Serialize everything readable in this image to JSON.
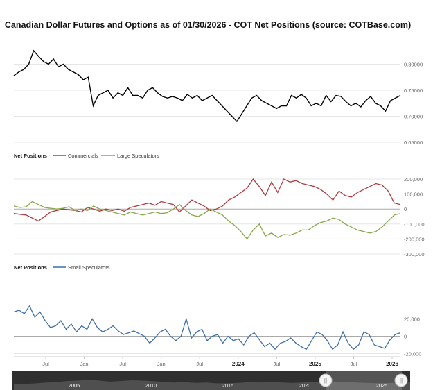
{
  "chart_data": {
    "type": "line",
    "title": "Canadian Dollar Futures and Options as of 01/30/2026 - COT Net Positions (source: COTBase.com)",
    "colors": {
      "price": "#000000",
      "commercials": "#b03a3f",
      "large_specs": "#86a84a",
      "small_specs": "#3f6fa8",
      "grid": "#e6e6e6",
      "zero": "#aaaaaa",
      "navigator_bg": "#2f2f2f",
      "navigator_area": "#555555"
    },
    "x_ticks": [
      {
        "label": "Jul",
        "bold": false
      },
      {
        "label": "Jan",
        "bold": false
      },
      {
        "label": "Jul",
        "bold": false
      },
      {
        "label": "Jan",
        "bold": false
      },
      {
        "label": "Jul",
        "bold": false
      },
      {
        "label": "2024",
        "bold": true
      },
      {
        "label": "Jul",
        "bold": false
      },
      {
        "label": "2025",
        "bold": true
      },
      {
        "label": "Jul",
        "bold": false
      },
      {
        "label": "2026",
        "bold": true
      }
    ],
    "panels": [
      {
        "name": "price",
        "y_ticks": [
          "0.80000",
          "0.75000",
          "0.70000",
          "0.65000"
        ],
        "ylim": [
          0.65,
          0.83
        ],
        "series": [
          {
            "key": "price",
            "values": [
              0.778,
              0.785,
              0.79,
              0.8,
              0.826,
              0.815,
              0.805,
              0.8,
              0.81,
              0.795,
              0.8,
              0.79,
              0.785,
              0.78,
              0.77,
              0.775,
              0.72,
              0.74,
              0.745,
              0.75,
              0.735,
              0.745,
              0.74,
              0.755,
              0.74,
              0.74,
              0.735,
              0.75,
              0.755,
              0.745,
              0.738,
              0.735,
              0.738,
              0.735,
              0.73,
              0.742,
              0.735,
              0.74,
              0.73,
              0.735,
              0.74,
              0.73,
              0.72,
              0.71,
              0.7,
              0.69,
              0.705,
              0.72,
              0.735,
              0.74,
              0.73,
              0.725,
              0.72,
              0.715,
              0.72,
              0.72,
              0.74,
              0.735,
              0.742,
              0.735,
              0.72,
              0.725,
              0.72,
              0.74,
              0.728,
              0.74,
              0.738,
              0.728,
              0.72,
              0.725,
              0.718,
              0.73,
              0.738,
              0.725,
              0.72,
              0.71,
              0.73,
              0.735,
              0.74
            ]
          }
        ]
      },
      {
        "name": "cot-net-1",
        "legend_head": "Net Positions",
        "legend": [
          "Commercials",
          "Large Speculators"
        ],
        "y_ticks": [
          "200,000",
          "100,000",
          "0",
          "-100,000",
          "-200,000",
          "-300,000"
        ],
        "ylim": [
          -300000,
          200000
        ],
        "series": [
          {
            "key": "commercials",
            "name": "Commercials",
            "values": [
              -30000,
              -35000,
              -40000,
              -60000,
              -80000,
              -50000,
              -20000,
              -10000,
              0,
              -5000,
              -10000,
              -20000,
              10000,
              0,
              -15000,
              0,
              -10000,
              0,
              -15000,
              10000,
              20000,
              30000,
              40000,
              25000,
              50000,
              40000,
              30000,
              -20000,
              20000,
              60000,
              40000,
              20000,
              -10000,
              0,
              20000,
              60000,
              80000,
              110000,
              140000,
              200000,
              150000,
              90000,
              180000,
              110000,
              200000,
              180000,
              190000,
              170000,
              160000,
              150000,
              130000,
              100000,
              60000,
              120000,
              90000,
              80000,
              110000,
              130000,
              150000,
              170000,
              160000,
              120000,
              40000,
              30000
            ]
          },
          {
            "key": "large_specs",
            "name": "Large Speculators",
            "values": [
              20000,
              10000,
              15000,
              50000,
              30000,
              10000,
              5000,
              0,
              5000,
              15000,
              -10000,
              0,
              -10000,
              20000,
              0,
              -10000,
              -20000,
              -30000,
              -40000,
              -20000,
              -30000,
              -40000,
              -30000,
              -20000,
              -30000,
              -25000,
              0,
              30000,
              -10000,
              -40000,
              -50000,
              -30000,
              0,
              -20000,
              -40000,
              -80000,
              -110000,
              -150000,
              -200000,
              -140000,
              -100000,
              -180000,
              -160000,
              -190000,
              -170000,
              -175000,
              -160000,
              -140000,
              -140000,
              -110000,
              -90000,
              -80000,
              -60000,
              -70000,
              -100000,
              -120000,
              -140000,
              -150000,
              -160000,
              -150000,
              -120000,
              -80000,
              -40000,
              -30000
            ]
          }
        ]
      },
      {
        "name": "cot-net-2",
        "legend_head": "Net Positions",
        "legend": [
          "Small Speculators"
        ],
        "y_ticks": [
          "20,000",
          "0",
          "-20,000"
        ],
        "ylim": [
          -22000,
          38000
        ],
        "series": [
          {
            "key": "small_specs",
            "name": "Small Speculators",
            "values": [
              28000,
              30000,
              26000,
              35000,
              22000,
              28000,
              18000,
              10000,
              12000,
              18000,
              8000,
              14000,
              5000,
              12000,
              8000,
              20000,
              10000,
              5000,
              8000,
              12000,
              6000,
              2000,
              4000,
              6000,
              3000,
              0,
              -8000,
              -2000,
              5000,
              8000,
              0,
              -5000,
              0,
              20000,
              -2000,
              5000,
              8000,
              -5000,
              0,
              2000,
              -8000,
              0,
              -5000,
              -3000,
              -10000,
              0,
              4000,
              -4000,
              -12000,
              -8000,
              -15000,
              -8000,
              -6000,
              -2000,
              -8000,
              -12000,
              -15000,
              -5000,
              5000,
              2000,
              -5000,
              -15000,
              -10000,
              5000,
              -8000,
              -15000,
              -10000,
              5000,
              2000,
              -10000,
              -12000,
              -14000,
              -4000,
              2000,
              4000
            ]
          }
        ]
      }
    ],
    "navigator": {
      "labels": [
        "2005",
        "2010",
        "2015",
        "2020",
        "2025"
      ],
      "handle_left_symbol": "||",
      "handle_right_symbol": "||",
      "area": [
        0.3,
        0.32,
        0.35,
        0.4,
        0.42,
        0.48,
        0.5,
        0.55,
        0.5,
        0.45,
        0.48,
        0.52,
        0.5,
        0.47,
        0.44,
        0.4,
        0.42,
        0.38,
        0.4,
        0.35,
        0.36,
        0.38,
        0.42,
        0.45,
        0.43,
        0.4,
        0.38,
        0.4,
        0.44,
        0.46,
        0.45,
        0.42,
        0.4,
        0.38,
        0.36,
        0.37,
        0.4,
        0.42
      ]
    }
  }
}
